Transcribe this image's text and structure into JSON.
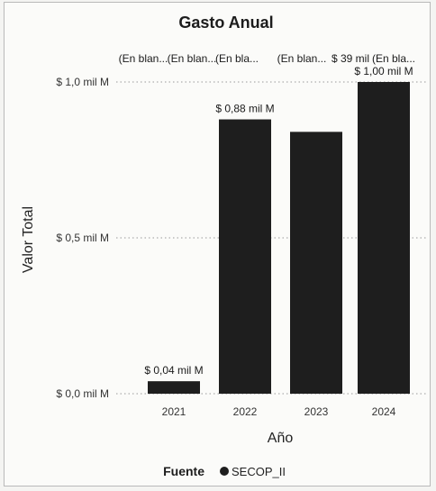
{
  "chart_data": {
    "type": "bar",
    "title": "Gasto Anual",
    "xlabel": "Año",
    "ylabel": "Valor Total",
    "categories": [
      "2021",
      "2022",
      "2023",
      "2024"
    ],
    "series": [
      {
        "name": "SECOP_II",
        "values": [
          0.04,
          0.88,
          0.84,
          1.0
        ]
      }
    ],
    "data_labels": [
      "$ 0,04 mil M",
      "$ 0,88 mil M",
      "",
      "$ 1,00 mil M"
    ],
    "ylim": [
      0,
      1.0
    ],
    "yticks": [
      {
        "value": 0,
        "label": "$ 0,0 mil M"
      },
      {
        "value": 0.5,
        "label": "$ 0,5 mil M"
      },
      {
        "value": 1.0,
        "label": "$ 1,0 mil M"
      }
    ],
    "top_annotations": [
      "(En blan...",
      "(En blan...",
      "(En bla...",
      "(En blan...",
      "$ 39 mil",
      "(En bla..."
    ],
    "grid": true,
    "bar_color": "#1e1e1e",
    "legend": {
      "title": "Fuente",
      "position": "bottom"
    }
  }
}
